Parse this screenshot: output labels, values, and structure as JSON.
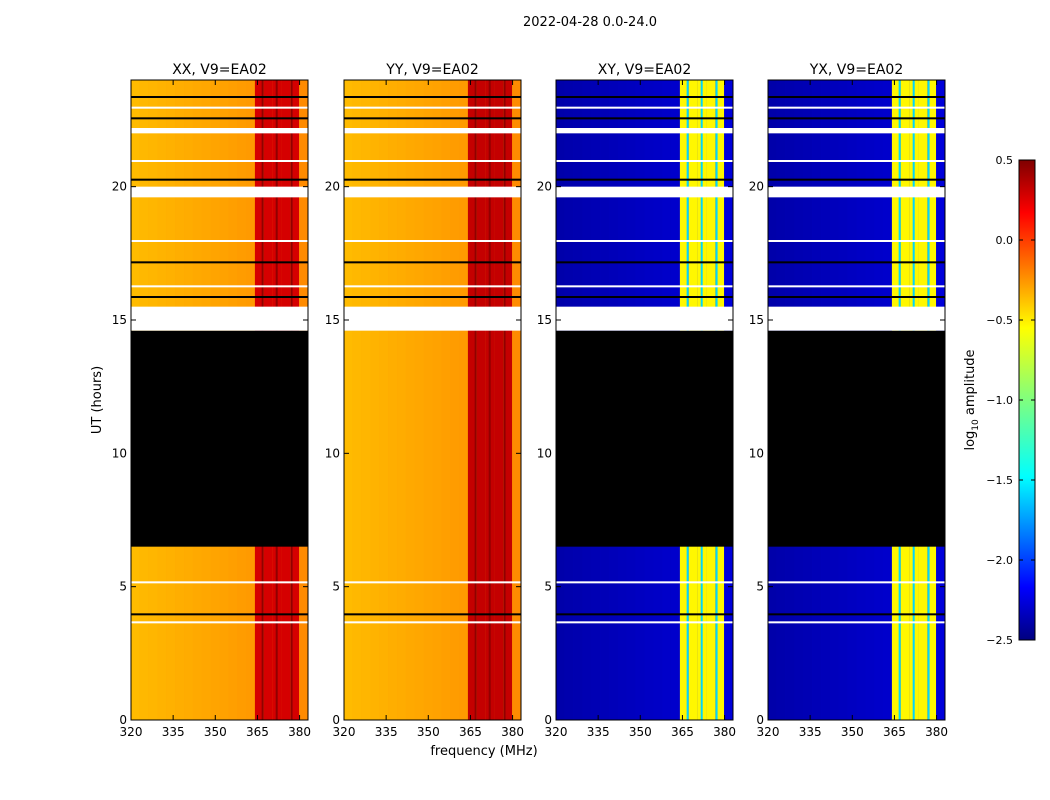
{
  "figure": {
    "suptitle": "2022-04-28 0.0-24.0",
    "ylabel": "UT (hours)",
    "xlabel": "frequency (MHz)"
  },
  "colorbar": {
    "label_prefix": "log",
    "label_sub": "10",
    "label_suffix": " amplitude",
    "ticks": [
      "0.5",
      "0.0",
      "−0.5",
      "−1.0",
      "−1.5",
      "−2.0",
      "−2.5"
    ],
    "min": -2.5,
    "max": 0.5,
    "colormap": "jet"
  },
  "chart_data": {
    "type": "heatmap",
    "title": "2022-04-28 0.0-24.0",
    "xlabel": "frequency (MHz)",
    "ylabel": "UT (hours)",
    "xlim": [
      320,
      383
    ],
    "ylim": [
      0,
      24
    ],
    "xticks": [
      320,
      335,
      350,
      365,
      380
    ],
    "yticks": [
      0,
      5,
      10,
      15,
      20
    ],
    "color_range": [
      -2.5,
      0.5
    ],
    "color_label": "log10 amplitude",
    "rfi_band_mhz": [
      363,
      380
    ],
    "gap_hours": [
      [
        14.6,
        15.5
      ],
      [
        19.6,
        20.0
      ],
      [
        22.0,
        22.2
      ]
    ],
    "panels": [
      {
        "title": "XX, V9=EA02",
        "base_level": -0.35,
        "band_level": 0.25,
        "blank_hours": [
          [
            6.5,
            14.6
          ]
        ]
      },
      {
        "title": "YY, V9=EA02",
        "base_level": -0.35,
        "band_level": 0.3,
        "blank_hours": []
      },
      {
        "title": "XY, V9=EA02",
        "base_level": -2.3,
        "band_level": -0.6,
        "blank_hours": [
          [
            6.5,
            14.6
          ]
        ]
      },
      {
        "title": "YX, V9=EA02",
        "base_level": -2.3,
        "band_level": -0.6,
        "blank_hours": [
          [
            6.5,
            14.6
          ]
        ]
      }
    ]
  }
}
